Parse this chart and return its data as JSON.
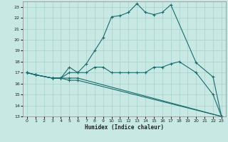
{
  "xlabel": "Humidex (Indice chaleur)",
  "xlim": [
    -0.5,
    23.5
  ],
  "ylim": [
    13,
    23.5
  ],
  "yticks": [
    13,
    14,
    15,
    16,
    17,
    18,
    19,
    20,
    21,
    22,
    23
  ],
  "xticks": [
    0,
    1,
    2,
    3,
    4,
    5,
    6,
    7,
    8,
    9,
    10,
    11,
    12,
    13,
    14,
    15,
    16,
    17,
    18,
    19,
    20,
    21,
    22,
    23
  ],
  "bg_color": "#c8e8e4",
  "grid_color": "#a8d0cc",
  "line_color": "#1a6b6b",
  "lines": [
    {
      "x": [
        0,
        1,
        3,
        4,
        5,
        6,
        7,
        8,
        9,
        10,
        11,
        12,
        13,
        14,
        15,
        16,
        17,
        20,
        22,
        23
      ],
      "y": [
        17,
        16.8,
        16.5,
        16.5,
        17.5,
        17,
        17.8,
        19,
        20.2,
        22.1,
        22.2,
        22.5,
        23.3,
        22.5,
        22.3,
        22.5,
        23.2,
        17.9,
        16.6,
        13
      ]
    },
    {
      "x": [
        0,
        1,
        3,
        4,
        5,
        6,
        7,
        8,
        9,
        10,
        11,
        12,
        13,
        14,
        15,
        16,
        17,
        18,
        20,
        22,
        23
      ],
      "y": [
        17,
        16.8,
        16.5,
        16.5,
        17,
        17,
        17,
        17.5,
        17.5,
        17,
        17,
        17,
        17,
        17,
        17.5,
        17.5,
        17.8,
        18,
        17,
        15,
        13
      ]
    },
    {
      "x": [
        0,
        1,
        3,
        4,
        5,
        6,
        23
      ],
      "y": [
        17,
        16.8,
        16.5,
        16.5,
        16.5,
        16.5,
        13
      ]
    },
    {
      "x": [
        0,
        1,
        3,
        4,
        5,
        6,
        23
      ],
      "y": [
        17,
        16.8,
        16.5,
        16.5,
        16.3,
        16.3,
        13
      ]
    }
  ]
}
